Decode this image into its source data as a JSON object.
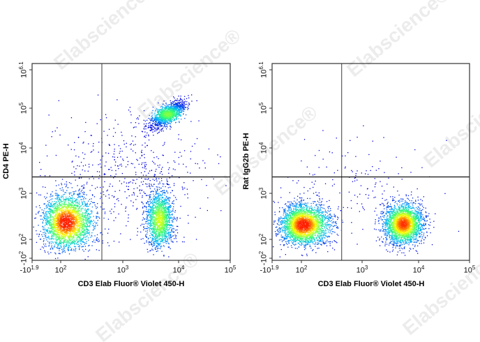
{
  "watermark": "Elabscience®",
  "colormap": [
    "#0000e0",
    "#00b4ff",
    "#30ff70",
    "#ffff00",
    "#ff2000"
  ],
  "chart_data": [
    {
      "type": "scatter",
      "subtype": "flow cytometry density dot plot",
      "xlabel": "CD3 Elab Fluor® Violet 450-H",
      "ylabel": "CD4 PE-H",
      "x_ticks": [
        {
          "base": "-10",
          "exp": "1.9"
        },
        {
          "base": "10",
          "exp": "2"
        },
        {
          "base": "10",
          "exp": "3"
        },
        {
          "base": "10",
          "exp": "4"
        },
        {
          "base": "10",
          "exp": "5"
        }
      ],
      "y_ticks": [
        {
          "base": "-10",
          "exp": "2"
        },
        {
          "base": "10",
          "exp": "2"
        },
        {
          "base": "10",
          "exp": "3"
        },
        {
          "base": "10",
          "exp": "4"
        },
        {
          "base": "10",
          "exp": "5"
        },
        {
          "base": "10",
          "exp": "6.1"
        }
      ],
      "x_scale": "biexponential",
      "y_scale": "biexponential",
      "quadrant_gate": {
        "x": 460,
        "y": 2300
      },
      "populations": [
        {
          "name_hint": "CD3- CD4-",
          "center_x": 120,
          "center_y": 240,
          "spread_x_decades": 0.22,
          "spread_y_decades": 0.3,
          "events": 2600
        },
        {
          "name_hint": "CD3+ CD4+",
          "center_x": 6300,
          "center_y": 72000,
          "spread_x_decades": 0.16,
          "spread_y_decades": 0.13,
          "events": 1300
        },
        {
          "name_hint": "CD3+ CD4-",
          "center_x": 4500,
          "center_y": 270,
          "spread_x_decades": 0.12,
          "spread_y_decades": 0.32,
          "events": 1600
        },
        {
          "name_hint": "scattered",
          "center_x": 1200,
          "center_y": 3000,
          "spread_x_decades": 0.7,
          "spread_y_decades": 0.7,
          "events": 500
        }
      ]
    },
    {
      "type": "scatter",
      "subtype": "flow cytometry density dot plot",
      "xlabel": "CD3 Elab Fluor® Violet 450-H",
      "ylabel": "Rat IgG2b PE-H",
      "x_ticks": [
        {
          "base": "-10",
          "exp": "1.9"
        },
        {
          "base": "10",
          "exp": "2"
        },
        {
          "base": "10",
          "exp": "3"
        },
        {
          "base": "10",
          "exp": "4"
        },
        {
          "base": "10",
          "exp": "5"
        }
      ],
      "y_ticks": [
        {
          "base": "-10",
          "exp": "2"
        },
        {
          "base": "10",
          "exp": "2"
        },
        {
          "base": "10",
          "exp": "3"
        },
        {
          "base": "10",
          "exp": "4"
        },
        {
          "base": "10",
          "exp": "5"
        },
        {
          "base": "10",
          "exp": "6.1"
        }
      ],
      "x_scale": "biexponential",
      "y_scale": "biexponential",
      "quadrant_gate": {
        "x": 460,
        "y": 2300
      },
      "populations": [
        {
          "name_hint": "CD3-",
          "center_x": 105,
          "center_y": 210,
          "spread_x_decades": 0.22,
          "spread_y_decades": 0.22,
          "events": 2800
        },
        {
          "name_hint": "CD3+",
          "center_x": 5300,
          "center_y": 220,
          "spread_x_decades": 0.17,
          "spread_y_decades": 0.22,
          "events": 2600
        },
        {
          "name_hint": "scattered",
          "center_x": 800,
          "center_y": 1500,
          "spread_x_decades": 0.6,
          "spread_y_decades": 0.6,
          "events": 150
        }
      ]
    }
  ]
}
